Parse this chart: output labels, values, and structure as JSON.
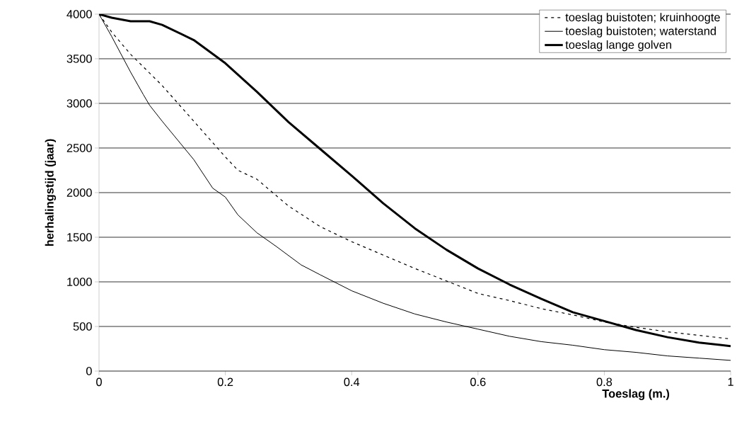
{
  "chart_data": {
    "type": "line",
    "xlabel": "Toeslag (m.)",
    "ylabel": "herhalingstijd (jaar)",
    "xlim": [
      0,
      1
    ],
    "ylim": [
      0,
      4000
    ],
    "xticks": [
      0,
      0.2,
      0.4,
      0.6,
      0.8,
      1
    ],
    "yticks": [
      0,
      500,
      1000,
      1500,
      2000,
      2500,
      3000,
      3500,
      4000
    ],
    "grid": "y",
    "legend": "top right",
    "marker": "none",
    "series": [
      {
        "name": "toeslag buistoten; kruinhoogte",
        "color": "#000000",
        "line_style": "dashed",
        "x": [
          0,
          0.02,
          0.05,
          0.1,
          0.15,
          0.2,
          0.22,
          0.25,
          0.3,
          0.35,
          0.4,
          0.45,
          0.5,
          0.55,
          0.6,
          0.65,
          0.7,
          0.75,
          0.8,
          0.85,
          0.9,
          0.95,
          1.0
        ],
        "values": [
          4000,
          3800,
          3550,
          3200,
          2800,
          2400,
          2250,
          2150,
          1850,
          1620,
          1450,
          1300,
          1150,
          1010,
          870,
          790,
          700,
          630,
          550,
          490,
          440,
          400,
          360
        ]
      },
      {
        "name": "toeslag buistoten; waterstand",
        "color": "#000000",
        "line_style": "solid",
        "x": [
          0,
          0.02,
          0.05,
          0.07,
          0.08,
          0.1,
          0.15,
          0.18,
          0.2,
          0.22,
          0.25,
          0.28,
          0.32,
          0.35,
          0.4,
          0.45,
          0.5,
          0.55,
          0.6,
          0.65,
          0.7,
          0.75,
          0.8,
          0.85,
          0.9,
          0.95,
          1.0
        ],
        "values": [
          4000,
          3750,
          3350,
          3100,
          2980,
          2800,
          2370,
          2050,
          1950,
          1750,
          1550,
          1400,
          1190,
          1080,
          900,
          760,
          640,
          550,
          470,
          390,
          330,
          290,
          240,
          210,
          170,
          145,
          120
        ]
      },
      {
        "name": "toeslag lange golven",
        "color": "#000000",
        "line_style": "solid",
        "x": [
          0,
          0.02,
          0.05,
          0.08,
          0.1,
          0.15,
          0.2,
          0.25,
          0.3,
          0.35,
          0.4,
          0.45,
          0.5,
          0.55,
          0.6,
          0.65,
          0.7,
          0.75,
          0.8,
          0.85,
          0.9,
          0.95,
          1.0
        ],
        "values": [
          4000,
          3960,
          3920,
          3920,
          3880,
          3710,
          3450,
          3130,
          2790,
          2490,
          2190,
          1880,
          1600,
          1360,
          1150,
          970,
          810,
          660,
          560,
          460,
          380,
          320,
          280
        ]
      }
    ]
  }
}
